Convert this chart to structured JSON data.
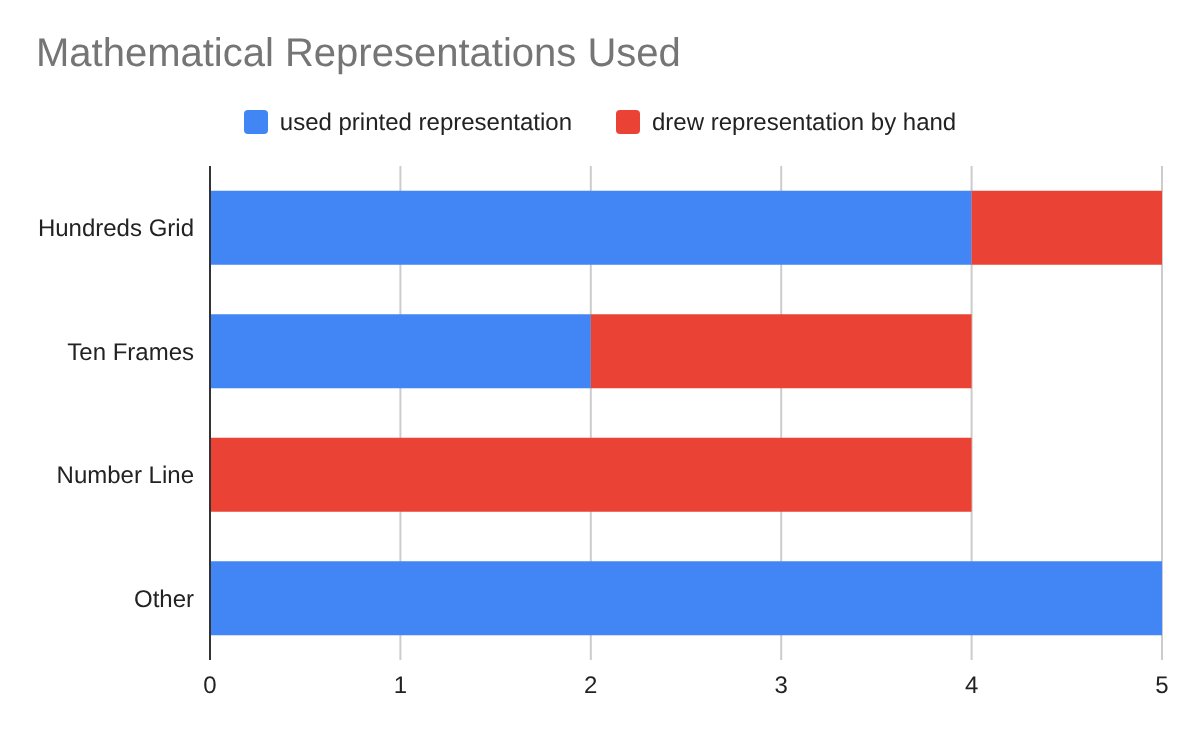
{
  "chart_data": {
    "type": "bar",
    "orientation": "horizontal",
    "stacked": true,
    "title": "Mathematical Representations Used",
    "categories": [
      "Hundreds Grid",
      "Ten Frames",
      "Number Line",
      "Other"
    ],
    "series": [
      {
        "name": "used printed representation",
        "color": "#4285f4",
        "values": [
          4,
          2,
          0,
          5
        ]
      },
      {
        "name": "drew representation by hand",
        "color": "#ea4335",
        "values": [
          1,
          2,
          4,
          0
        ]
      }
    ],
    "xlim": [
      0,
      5
    ],
    "xticks": [
      0,
      1,
      2,
      3,
      4,
      5
    ],
    "grid": "x",
    "legend": "top"
  }
}
